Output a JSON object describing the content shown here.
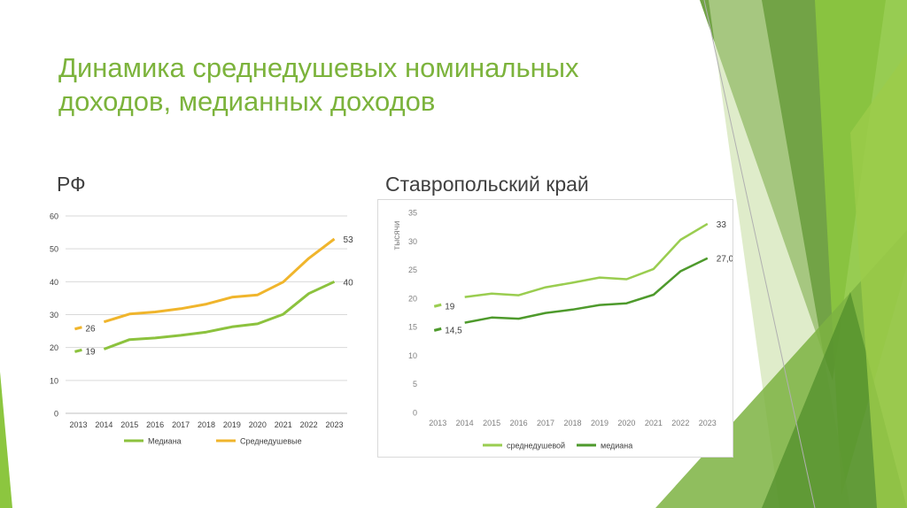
{
  "slide": {
    "title_line1": "Динамика среднедушевых номинальных",
    "title_line2": "доходов, медианных доходов",
    "left_label": "РФ",
    "right_label": "Ставропольский край"
  },
  "colors": {
    "title": "#7cb33c",
    "rf_median": "#8cc23e",
    "rf_avg": "#f0b52c",
    "sk_avg": "#9acd50",
    "sk_median": "#4e9a2c",
    "decor_dark": "#5f9a37",
    "decor_light": "#8cc63f"
  },
  "chart_data": [
    {
      "type": "line",
      "title": "",
      "x": [
        "2013",
        "2014",
        "2015",
        "2016",
        "2017",
        "2018",
        "2019",
        "2020",
        "2021",
        "2022",
        "2023"
      ],
      "ylim": [
        0,
        60
      ],
      "yticks": [
        0,
        10,
        20,
        30,
        40,
        50,
        60
      ],
      "ylabel": "",
      "grid": true,
      "legend_position": "bottom",
      "series": [
        {
          "name": "Медиана",
          "values": [
            19,
            19.5,
            22.4,
            22.9,
            23.7,
            24.7,
            26.3,
            27.2,
            30.1,
            36.4,
            40
          ],
          "labels": [
            {
              "index": 0,
              "text": "19"
            },
            {
              "index": 10,
              "text": "40"
            }
          ]
        },
        {
          "name": "Среднедушевые",
          "values": [
            25.9,
            27.8,
            30.2,
            30.8,
            31.8,
            33.2,
            35.3,
            36,
            39.9,
            47.1,
            53
          ],
          "labels": [
            {
              "index": 0,
              "text": "26"
            },
            {
              "index": 10,
              "text": "53"
            }
          ]
        }
      ]
    },
    {
      "type": "line",
      "title": "",
      "x": [
        "2013",
        "2014",
        "2015",
        "2016",
        "2017",
        "2018",
        "2019",
        "2020",
        "2021",
        "2022",
        "2023"
      ],
      "ylim": [
        0,
        35
      ],
      "yticks": [
        0,
        5,
        10,
        15,
        20,
        25,
        30,
        35
      ],
      "ylabel": "тысячи",
      "grid": false,
      "legend_position": "bottom",
      "series": [
        {
          "name": "среднедушевой",
          "values": [
            18.7,
            20.2,
            20.8,
            20.5,
            21.9,
            22.7,
            23.6,
            23.3,
            25.1,
            30.2,
            33
          ],
          "labels": [
            {
              "index": 0,
              "text": "19"
            },
            {
              "index": 10,
              "text": "33"
            }
          ]
        },
        {
          "name": "медиана",
          "values": [
            14.5,
            15.7,
            16.6,
            16.4,
            17.4,
            18,
            18.8,
            19.1,
            20.6,
            24.7,
            27
          ],
          "labels": [
            {
              "index": 0,
              "text": "14,5"
            },
            {
              "index": 10,
              "text": "27,0"
            }
          ]
        }
      ]
    }
  ]
}
